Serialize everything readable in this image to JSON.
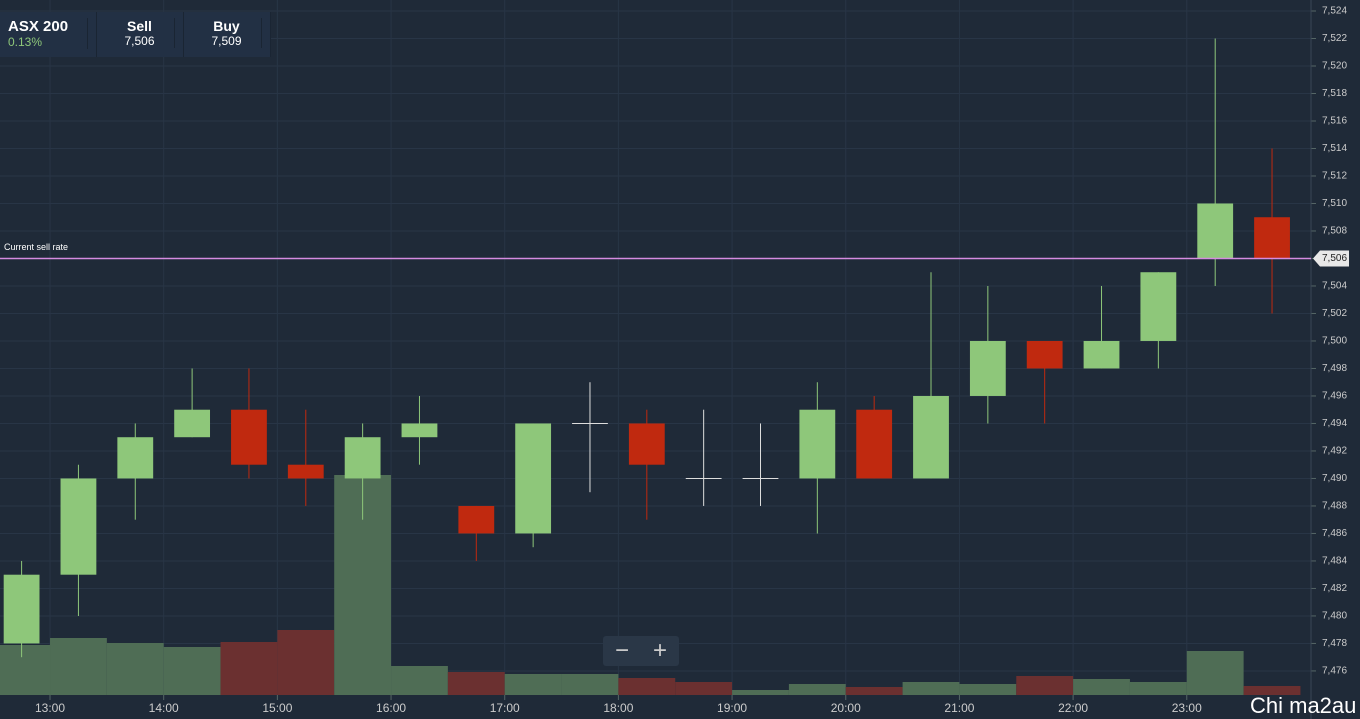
{
  "header": {
    "instrument": "ASX 200",
    "change": "0.13%",
    "sell_label": "Sell",
    "sell": "7,506",
    "buy_label": "Buy",
    "buy": "7,509"
  },
  "watermark": "Chi ma2au",
  "chart_data": {
    "type": "candlestick",
    "x": [
      12.75,
      13.25,
      13.75,
      14.25,
      14.75,
      15.25,
      15.75,
      16.25,
      16.75,
      17.25,
      17.75,
      18.25,
      18.75,
      19.25,
      19.75,
      20.25,
      20.75,
      21.25,
      21.75,
      22.25,
      22.75,
      23.25,
      23.75
    ],
    "open": [
      7478,
      7483,
      7490,
      7493,
      7495,
      7491,
      7490,
      7493,
      7488,
      7486,
      7494,
      7494,
      7490,
      7490,
      7490,
      7495,
      7490,
      7496,
      7500,
      7498,
      7500,
      7506,
      7509
    ],
    "high": [
      7484,
      7491,
      7494,
      7498,
      7498,
      7495,
      7494,
      7496,
      7488,
      7494,
      7497,
      7495,
      7495,
      7494,
      7497,
      7496,
      7505,
      7504,
      7500,
      7504,
      7505,
      7522,
      7514
    ],
    "low": [
      7477,
      7480,
      7487,
      7493,
      7490,
      7488,
      7487,
      7491,
      7484,
      7485,
      7489,
      7487,
      7488,
      7488,
      7486,
      7490,
      7490,
      7494,
      7494,
      7498,
      7498,
      7504,
      7502
    ],
    "close": [
      7483,
      7490,
      7493,
      7495,
      7491,
      7490,
      7493,
      7494,
      7486,
      7494,
      7494,
      7491,
      7490,
      7490,
      7495,
      7490,
      7496,
      7500,
      7498,
      7500,
      7505,
      7510,
      7506
    ],
    "volume": [
      50,
      57,
      52,
      48,
      53,
      65,
      220,
      29,
      23,
      21,
      21,
      17,
      13,
      5,
      11,
      8,
      13,
      11,
      19,
      16,
      13,
      44,
      9
    ],
    "volume_colors": [
      "#4f6d55",
      "#4f6d55",
      "#4f6d55",
      "#4f6d55",
      "#6b3030",
      "#6b3030",
      "#4f6d55",
      "#4f6d55",
      "#6b3030",
      "#4f6d55",
      "#4f6d55",
      "#6b3030",
      "#6b3030",
      "#4f6d55",
      "#4f6d55",
      "#6b3030",
      "#4f6d55",
      "#4f6d55",
      "#6b3030",
      "#4f6d55",
      "#4f6d55",
      "#4f6d55",
      "#6b3030"
    ],
    "up_color": "#8ec77a",
    "down_color": "#c0290f",
    "xlim": [
      12.56,
      24.04
    ],
    "xticks": [
      {
        "value": 13,
        "label": "13:00"
      },
      {
        "value": 14,
        "label": "14:00"
      },
      {
        "value": 15,
        "label": "15:00"
      },
      {
        "value": 16,
        "label": "16:00"
      },
      {
        "value": 17,
        "label": "17:00"
      },
      {
        "value": 18,
        "label": "18:00"
      },
      {
        "value": 19,
        "label": "19:00"
      },
      {
        "value": 20,
        "label": "20:00"
      },
      {
        "value": 21,
        "label": "21:00"
      },
      {
        "value": 22,
        "label": "22:00"
      },
      {
        "value": 23,
        "label": "23:00"
      }
    ],
    "ylim": [
      7474.25,
      7524.8
    ],
    "yticks": [
      {
        "value": 7476,
        "label": "7,476"
      },
      {
        "value": 7478,
        "label": "7,478"
      },
      {
        "value": 7480,
        "label": "7,480"
      },
      {
        "value": 7482,
        "label": "7,482"
      },
      {
        "value": 7484,
        "label": "7,484"
      },
      {
        "value": 7486,
        "label": "7,486"
      },
      {
        "value": 7488,
        "label": "7,488"
      },
      {
        "value": 7490,
        "label": "7,490"
      },
      {
        "value": 7492,
        "label": "7,492"
      },
      {
        "value": 7494,
        "label": "7,494"
      },
      {
        "value": 7496,
        "label": "7,496"
      },
      {
        "value": 7498,
        "label": "7,498"
      },
      {
        "value": 7500,
        "label": "7,500"
      },
      {
        "value": 7502,
        "label": "7,502"
      },
      {
        "value": 7504,
        "label": "7,504"
      },
      {
        "value": 7506,
        "label": "7,506"
      },
      {
        "value": 7508,
        "label": "7,508"
      },
      {
        "value": 7510,
        "label": "7,510"
      },
      {
        "value": 7512,
        "label": "7,512"
      },
      {
        "value": 7514,
        "label": "7,514"
      },
      {
        "value": 7516,
        "label": "7,516"
      },
      {
        "value": 7518,
        "label": "7,518"
      },
      {
        "value": 7520,
        "label": "7,520"
      },
      {
        "value": 7522,
        "label": "7,522"
      },
      {
        "value": 7524,
        "label": "7,524"
      }
    ],
    "grid": true,
    "current_rate": {
      "label": "Current sell rate",
      "value": 7506,
      "value_label": "7,506",
      "color": "#d58be0"
    }
  }
}
